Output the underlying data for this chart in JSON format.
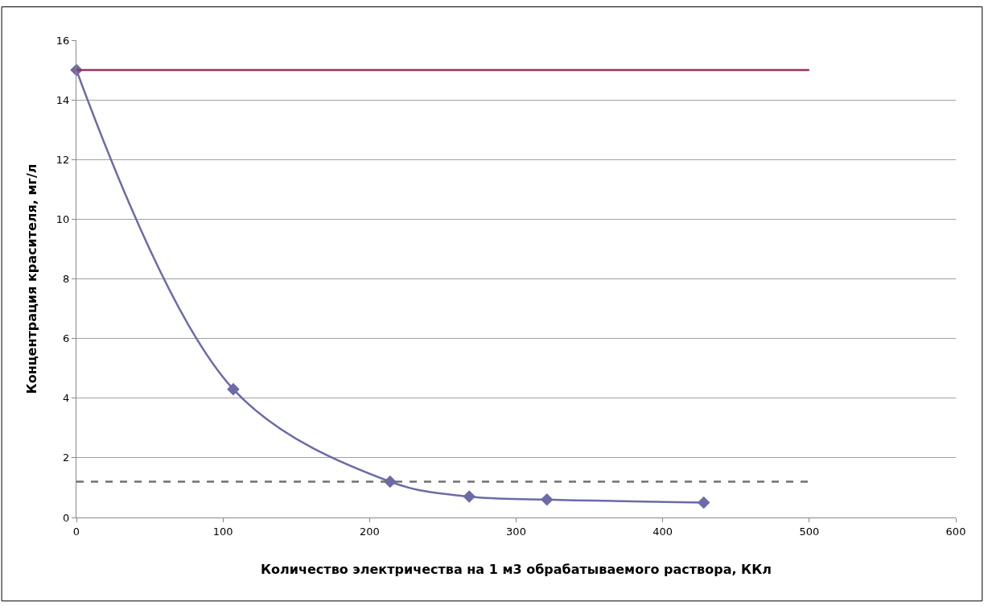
{
  "chart_data": {
    "type": "line",
    "xlabel": "Количество электричества на 1 м3 обрабатываемого раствора, ККл",
    "ylabel": "Концентрация красителя, мг/л",
    "series": [
      {
        "color": "#6b6ba8",
        "x": [
          0,
          107,
          214,
          268,
          321,
          428
        ],
        "values": [
          15,
          4.3,
          1.2,
          0.7,
          0.6,
          0.5
        ],
        "marker": "diamond",
        "line_style": "solid"
      },
      {
        "color": "#a0305c",
        "x": [
          0,
          500
        ],
        "values": [
          15,
          15
        ],
        "marker": "none",
        "line_style": "solid"
      },
      {
        "color": "#707070",
        "x": [
          0,
          500
        ],
        "values": [
          1.2,
          1.2
        ],
        "marker": "none",
        "line_style": "dashed"
      }
    ],
    "xlim": [
      0,
      600
    ],
    "xticks": [
      0,
      100,
      200,
      300,
      400,
      500,
      600
    ],
    "ylim": [
      0,
      16
    ],
    "yticks": [
      0,
      2,
      4,
      6,
      8,
      10,
      12,
      14,
      16
    ],
    "grid": "y"
  }
}
